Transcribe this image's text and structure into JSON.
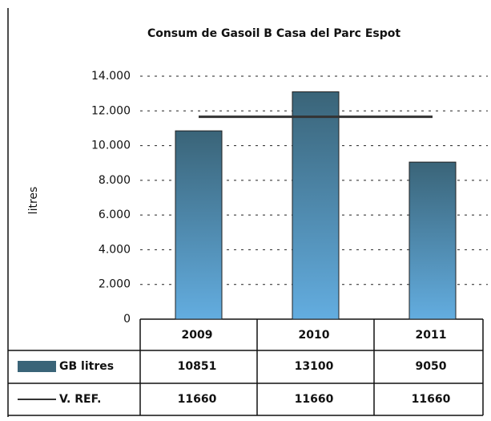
{
  "chart_data": {
    "type": "bar",
    "title": "Consum de Gasoil B Casa del Parc Espot",
    "y_label": "litres",
    "categories": [
      "2009",
      "2010",
      "2011"
    ],
    "series": [
      {
        "name": "GB litres",
        "color": "#3a6478",
        "values": [
          10851,
          13100,
          9050
        ]
      },
      {
        "name": "V. REF.",
        "type": "line",
        "color": "#333333",
        "values": [
          11660,
          11660,
          11660
        ]
      }
    ],
    "ylim": [
      0,
      14000
    ],
    "yticks": [
      0,
      {
        "value": 2000,
        "label": "2.000"
      },
      {
        "value": 4000,
        "label": "4.000"
      },
      {
        "value": 6000,
        "label": "6.000"
      },
      {
        "value": 8000,
        "label": "8.000"
      },
      {
        "value": 10000,
        "label": "10.000"
      },
      {
        "value": 12000,
        "label": "12.000"
      },
      {
        "value": 14000,
        "label": "14.000"
      }
    ],
    "grid": true
  }
}
